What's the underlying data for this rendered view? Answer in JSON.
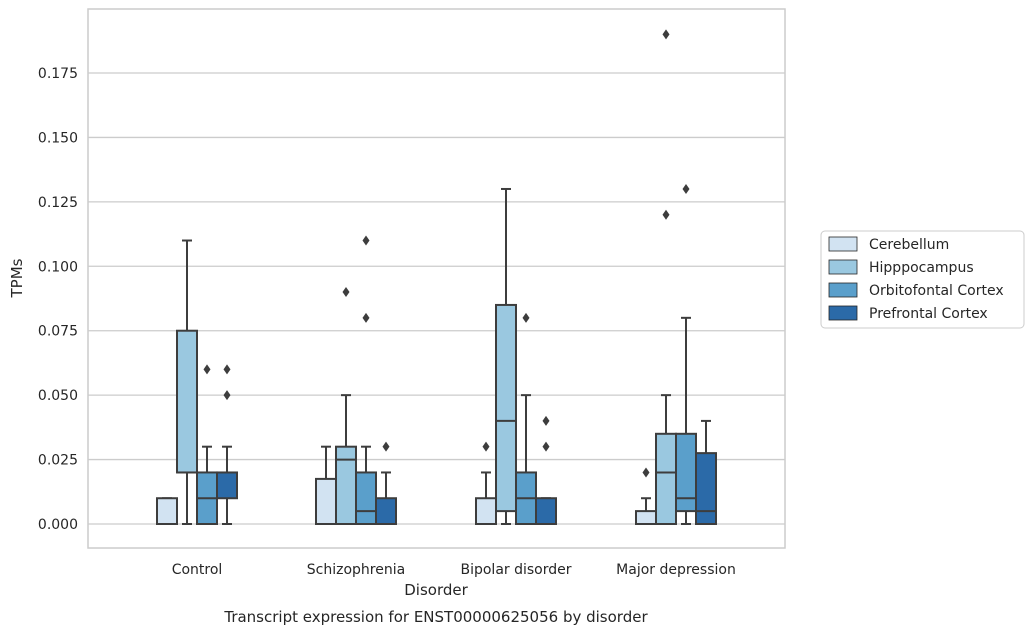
{
  "chart_data": {
    "type": "box",
    "title": "Transcript expression for ENST00000625056 by disorder",
    "xlabel": "Disorder",
    "ylabel": "TPMs",
    "ylim": [
      -0.0095,
      0.1985
    ],
    "yticks": [
      "0.000",
      "0.025",
      "0.050",
      "0.075",
      "0.100",
      "0.125",
      "0.150",
      "0.175"
    ],
    "grid": "horizontal",
    "legend_position": "right",
    "categories": [
      "Control",
      "Schizophrenia",
      "Bipolar disorder",
      "Major depression"
    ],
    "series": [
      {
        "name": "Cerebellum",
        "color": "#d2e3f2",
        "boxes": [
          {
            "q1": 0.0,
            "median": 0.0,
            "q3": 0.01,
            "whisker_low": 0.0,
            "whisker_high": 0.01,
            "outliers": []
          },
          {
            "q1": 0.0,
            "median": 0.0,
            "q3": 0.0175,
            "whisker_low": 0.0,
            "whisker_high": 0.03,
            "outliers": []
          },
          {
            "q1": 0.0,
            "median": 0.0,
            "q3": 0.01,
            "whisker_low": 0.0,
            "whisker_high": 0.02,
            "outliers": [
              0.03
            ]
          },
          {
            "q1": 0.0,
            "median": 0.0,
            "q3": 0.005,
            "whisker_low": 0.0,
            "whisker_high": 0.01,
            "outliers": [
              0.02
            ]
          }
        ]
      },
      {
        "name": "Hipppocampus",
        "color": "#9ac8e0",
        "boxes": [
          {
            "q1": 0.02,
            "median": 0.02,
            "q3": 0.075,
            "whisker_low": 0.0,
            "whisker_high": 0.11,
            "outliers": []
          },
          {
            "q1": 0.0,
            "median": 0.025,
            "q3": 0.03,
            "whisker_low": 0.0,
            "whisker_high": 0.05,
            "outliers": [
              0.09
            ]
          },
          {
            "q1": 0.005,
            "median": 0.04,
            "q3": 0.085,
            "whisker_low": 0.0,
            "whisker_high": 0.13,
            "outliers": []
          },
          {
            "q1": 0.0,
            "median": 0.02,
            "q3": 0.035,
            "whisker_low": 0.0,
            "whisker_high": 0.05,
            "outliers": [
              0.12,
              0.19
            ]
          }
        ]
      },
      {
        "name": "Orbitofontal Cortex",
        "color": "#5a9fcb",
        "boxes": [
          {
            "q1": 0.0,
            "median": 0.01,
            "q3": 0.02,
            "whisker_low": 0.0,
            "whisker_high": 0.03,
            "outliers": [
              0.06
            ]
          },
          {
            "q1": 0.0,
            "median": 0.005,
            "q3": 0.02,
            "whisker_low": 0.0,
            "whisker_high": 0.03,
            "outliers": [
              0.08,
              0.11
            ]
          },
          {
            "q1": 0.0,
            "median": 0.01,
            "q3": 0.02,
            "whisker_low": 0.0,
            "whisker_high": 0.05,
            "outliers": [
              0.08
            ]
          },
          {
            "q1": 0.005,
            "median": 0.01,
            "q3": 0.035,
            "whisker_low": 0.0,
            "whisker_high": 0.08,
            "outliers": [
              0.13
            ]
          }
        ]
      },
      {
        "name": "Prefrontal Cortex",
        "color": "#2b6aa8",
        "boxes": [
          {
            "q1": 0.01,
            "median": 0.02,
            "q3": 0.02,
            "whisker_low": 0.0,
            "whisker_high": 0.03,
            "outliers": [
              0.05,
              0.06
            ]
          },
          {
            "q1": 0.0,
            "median": 0.0,
            "q3": 0.01,
            "whisker_low": 0.0,
            "whisker_high": 0.02,
            "outliers": [
              0.03
            ]
          },
          {
            "q1": 0.0,
            "median": 0.0,
            "q3": 0.01,
            "whisker_low": 0.0,
            "whisker_high": 0.01,
            "outliers": [
              0.03,
              0.04
            ]
          },
          {
            "q1": 0.0,
            "median": 0.005,
            "q3": 0.0275,
            "whisker_low": 0.0,
            "whisker_high": 0.04,
            "outliers": []
          }
        ]
      }
    ],
    "colors": {
      "grid": "#cccccc",
      "frame": "#cccccc",
      "line": "#3d3d3d"
    }
  }
}
